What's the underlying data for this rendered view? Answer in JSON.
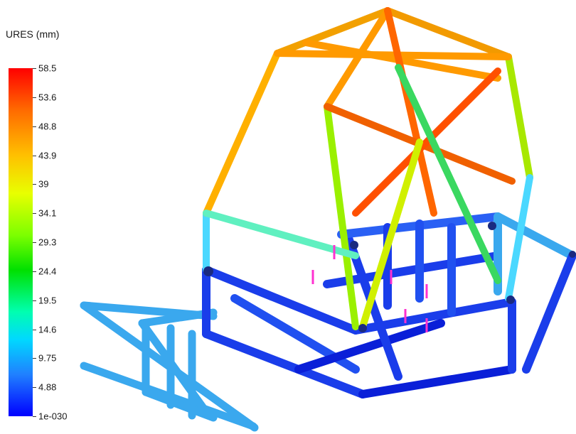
{
  "legend": {
    "title": "URES (mm)",
    "ticks": [
      "58.5",
      "53.6",
      "48.8",
      "43.9",
      "39",
      "34.1",
      "29.3",
      "24.4",
      "19.5",
      "14.6",
      "9.75",
      "4.88",
      "1e-030"
    ],
    "colors": {
      "max": "#ff0000",
      "high": "#ffc000",
      "mid": "#00e000",
      "low": "#00d8ff",
      "min": "#0000ff"
    }
  }
}
